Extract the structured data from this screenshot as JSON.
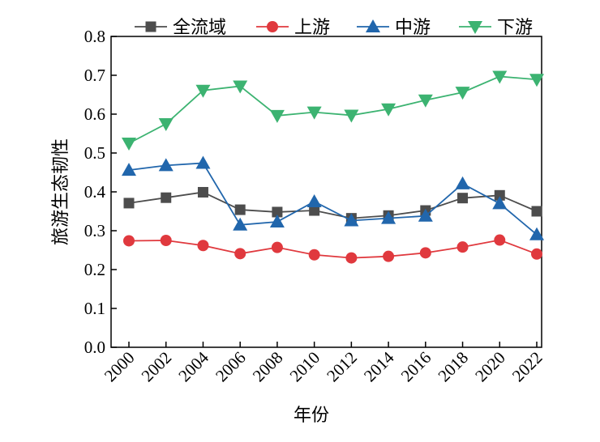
{
  "chart_data": {
    "type": "line",
    "title": "",
    "xlabel": "年份",
    "ylabel": "旅游生态韧性",
    "ylim": [
      0,
      0.8
    ],
    "yticks": [
      "0.0",
      "0.1",
      "0.2",
      "0.3",
      "0.4",
      "0.5",
      "0.6",
      "0.7",
      "0.8"
    ],
    "categories": [
      "2000",
      "2002",
      "2004",
      "2006",
      "2008",
      "2010",
      "2012",
      "2014",
      "2016",
      "2018",
      "2020",
      "2022"
    ],
    "legend_position": "top",
    "series": [
      {
        "name": "全流域",
        "color": "#4d4d4d",
        "marker": "square",
        "values": [
          0.371,
          0.385,
          0.399,
          0.354,
          0.348,
          0.352,
          0.332,
          0.339,
          0.352,
          0.384,
          0.391,
          0.35
        ]
      },
      {
        "name": "上游",
        "color": "#e0393e",
        "marker": "circle",
        "values": [
          0.274,
          0.275,
          0.262,
          0.241,
          0.257,
          0.238,
          0.23,
          0.234,
          0.243,
          0.258,
          0.276,
          0.24
        ]
      },
      {
        "name": "中游",
        "color": "#2166ac",
        "marker": "triangle-up",
        "values": [
          0.456,
          0.468,
          0.474,
          0.315,
          0.323,
          0.375,
          0.326,
          0.332,
          0.338,
          0.421,
          0.37,
          0.29
        ]
      },
      {
        "name": "下游",
        "color": "#3cb371",
        "marker": "triangle-down",
        "values": [
          0.525,
          0.575,
          0.661,
          0.672,
          0.596,
          0.605,
          0.597,
          0.613,
          0.636,
          0.656,
          0.697,
          0.689
        ]
      }
    ]
  }
}
